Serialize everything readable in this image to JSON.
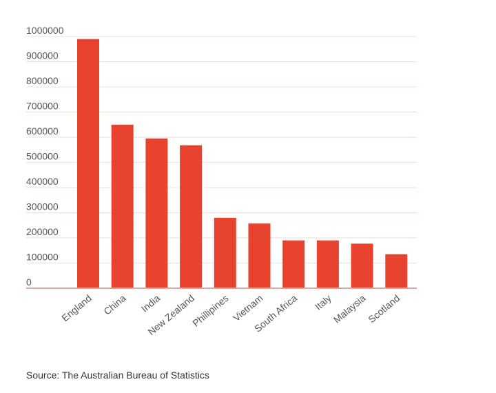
{
  "chart_data": {
    "type": "bar",
    "categories": [
      "England",
      "China",
      "India",
      "New Zealand",
      "Phillipines",
      "Vietnam",
      "South Africa",
      "Italy",
      "Malaysia",
      "Scotland"
    ],
    "values": [
      990000,
      650000,
      595000,
      568000,
      280000,
      257000,
      190000,
      190000,
      177000,
      135000
    ],
    "title": "",
    "xlabel": "",
    "ylabel": "",
    "ylim": [
      0,
      1000000
    ],
    "yticks": [
      "0",
      "100000",
      "200000",
      "300000",
      "400000",
      "500000",
      "600000",
      "700000",
      "800000",
      "900000",
      "1000000"
    ],
    "grid": true,
    "legend": "none",
    "colors": {
      "bar": "#e8432e",
      "grid": "#f0dcd8",
      "axis": "#d9a89f"
    }
  },
  "source_note": "Source: The Australian Bureau of Statistics"
}
